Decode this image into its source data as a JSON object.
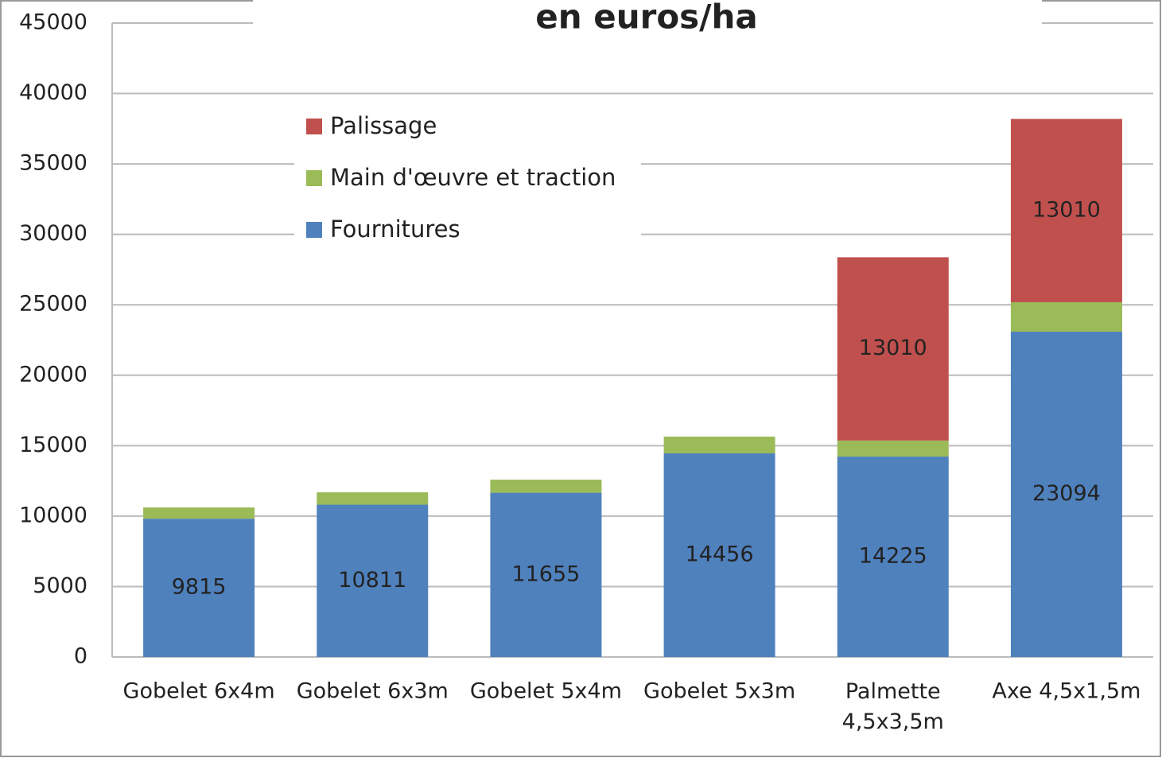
{
  "chart_data": {
    "type": "stacked_bar",
    "title": "en euros/ha",
    "categories": [
      "Gobelet 6x4m",
      "Gobelet 6x3m",
      "Gobelet 5x4m",
      "Gobelet 5x3m",
      "Palmette\n4,5x3,5m",
      "Axe 4,5x1,5m"
    ],
    "series": [
      {
        "name": "Fournitures",
        "color": "#4f81bd",
        "values": [
          9815,
          10811,
          11655,
          14456,
          14225,
          23094
        ],
        "labels": true
      },
      {
        "name": "Main d'œuvre et traction",
        "color": "#9bbb59",
        "values": [
          800,
          880,
          935,
          1190,
          1140,
          2090
        ],
        "labels": false
      },
      {
        "name": "Palissage",
        "color": "#c0504d",
        "values": [
          null,
          null,
          null,
          null,
          13010,
          13010
        ],
        "labels": true
      }
    ],
    "ylim": [
      0,
      45000
    ],
    "yticks": [
      0,
      5000,
      10000,
      15000,
      20000,
      25000,
      30000,
      35000,
      40000,
      45000
    ],
    "grid": true,
    "legend": "upper left"
  }
}
